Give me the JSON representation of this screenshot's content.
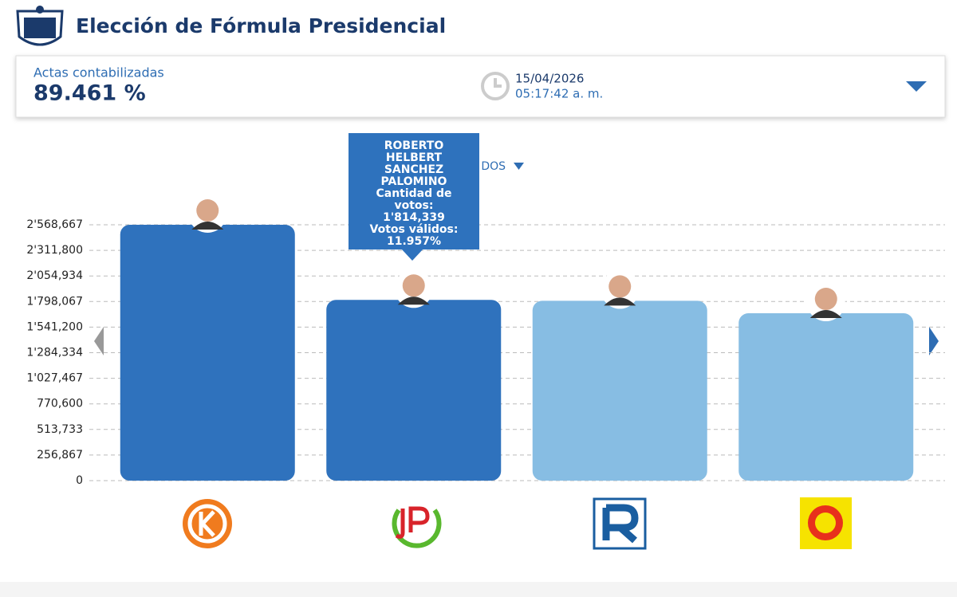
{
  "header": {
    "title": "Elección de Fórmula Presidencial"
  },
  "summary": {
    "label": "Actas contabilizadas",
    "value": "89.461 %",
    "date": "15/04/2026",
    "time": "05:17:42 a. m."
  },
  "dropdown": "DOS",
  "chart_data": {
    "type": "bar",
    "values": [
      2568667,
      1814339,
      1805000,
      1680000
    ],
    "colors": [
      "#2f72bd",
      "#2f72bd",
      "#87bde3",
      "#87bde3"
    ],
    "ylim": [
      0,
      2568667
    ],
    "yticks": [
      0,
      {
        "value": 256867,
        "label": "256,867"
      },
      {
        "value": 513733,
        "label": "513,733"
      },
      {
        "value": 770600,
        "label": "770,600"
      },
      {
        "value": 1027467,
        "label": "1'027,467"
      },
      {
        "value": 1284334,
        "label": "1'284,334"
      },
      {
        "value": 1541200,
        "label": "1'541,200"
      },
      {
        "value": 1798067,
        "label": "1'798,067"
      },
      {
        "value": 2054934,
        "label": "2'054,934"
      },
      {
        "value": 2311800,
        "label": "2'311,800"
      },
      {
        "value": 2568667,
        "label": "2'568,667"
      }
    ],
    "grid": true,
    "tooltip": {
      "name": "ROBERTO HELBERT SANCHEZ PALOMINO",
      "votes_label": "Cantidad de votos:",
      "value_label": "1'814,339",
      "share_label": "Votos válidos:",
      "share": "11.957%"
    }
  }
}
